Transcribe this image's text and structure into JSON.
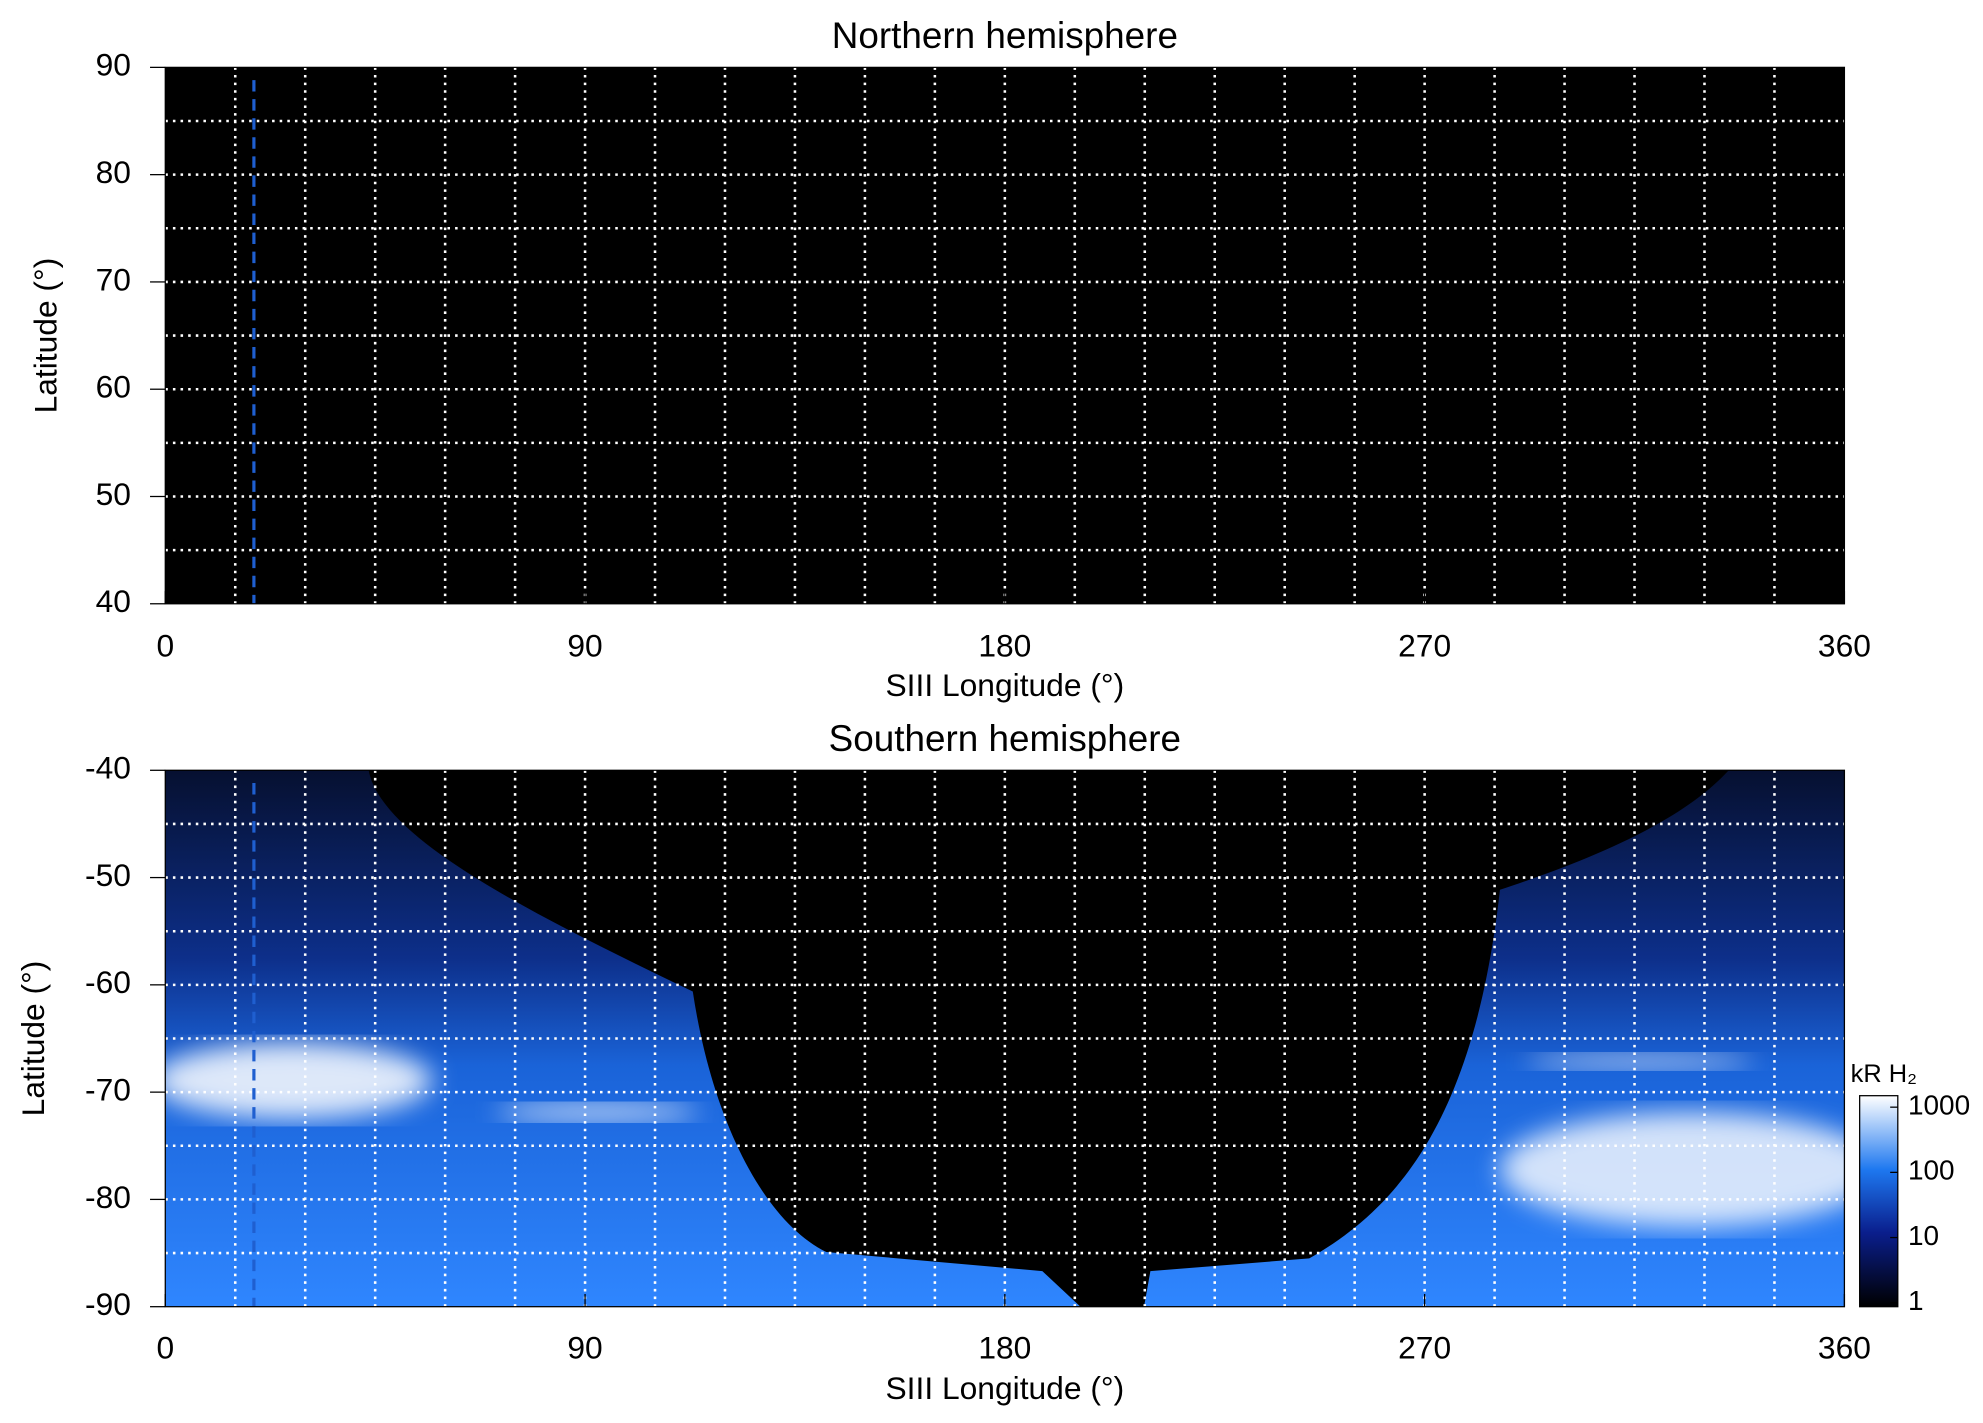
{
  "chart_data": [
    {
      "type": "heatmap",
      "title": "Northern hemisphere",
      "xlabel": "SIII Longitude (°)",
      "ylabel": "Latitude (°)",
      "xlim": [
        0,
        360
      ],
      "xticks": [
        0,
        90,
        180,
        270,
        360
      ],
      "ylim": [
        40,
        90
      ],
      "yticks": [
        40,
        50,
        60,
        70,
        80,
        90
      ],
      "grid": true,
      "xgrid": [
        15,
        30,
        45,
        60,
        75,
        90,
        105,
        120,
        135,
        150,
        165,
        180,
        195,
        210,
        225,
        240,
        255,
        270,
        285,
        300,
        315,
        330,
        345
      ],
      "ygrid": [
        45,
        50,
        55,
        60,
        65,
        70,
        75,
        80,
        85
      ],
      "marker_longitude": 19,
      "marker_color": "#1f5fd0",
      "emission": false
    },
    {
      "type": "heatmap",
      "title": "Southern hemisphere",
      "xlabel": "SIII Longitude (°)",
      "ylabel": "Latitude (°)",
      "xlim": [
        0,
        360
      ],
      "xticks": [
        0,
        90,
        180,
        270,
        360
      ],
      "ylim": [
        -90,
        -40
      ],
      "yticks": [
        -90,
        -80,
        -70,
        -60,
        -50,
        -40
      ],
      "grid": true,
      "xgrid": [
        15,
        30,
        45,
        60,
        75,
        90,
        105,
        120,
        135,
        150,
        165,
        180,
        195,
        210,
        225,
        240,
        255,
        270,
        285,
        300,
        315,
        330,
        345
      ],
      "ygrid": [
        -85,
        -80,
        -75,
        -70,
        -65,
        -60,
        -55,
        -50,
        -45
      ],
      "marker_longitude": 19,
      "marker_color": "#1f5fd0",
      "emission": true,
      "colorbar": {
        "label": "kR H₂",
        "lim": [
          0.87,
          1500
        ],
        "ticks": [
          1,
          10,
          100,
          1000
        ],
        "log": true
      }
    }
  ]
}
